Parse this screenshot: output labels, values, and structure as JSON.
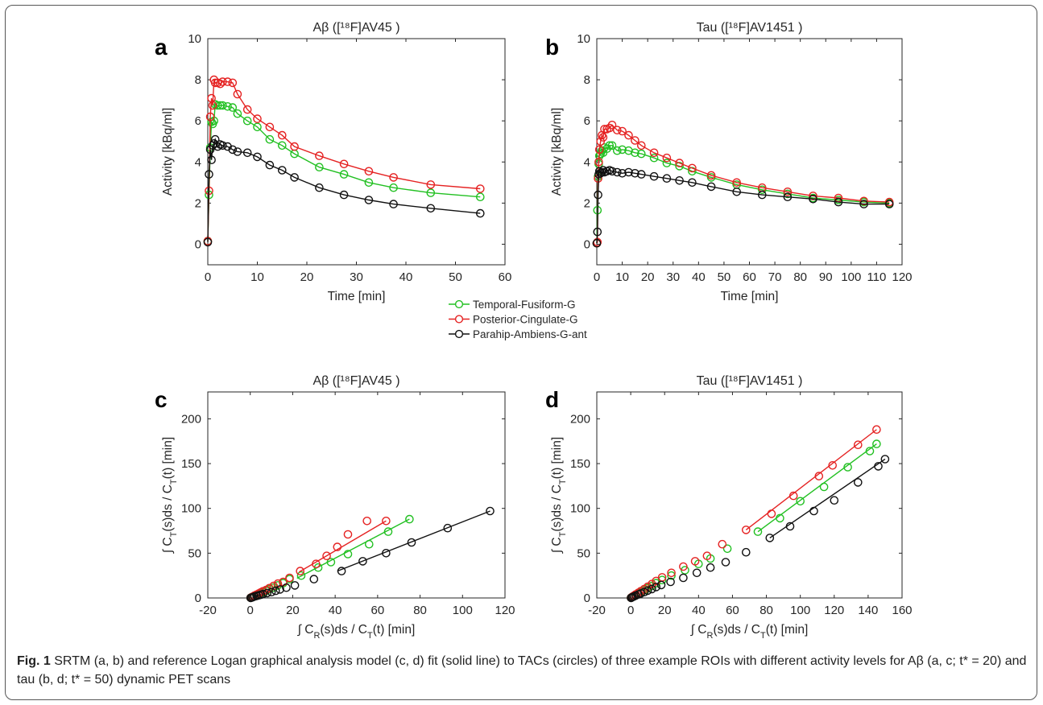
{
  "chart_data": [
    {
      "panel": "a",
      "type": "line",
      "title": "Aβ ([¹⁸F]AV45 )",
      "xlabel": "Time [min]",
      "ylabel": "Activity [kBq/ml]",
      "xlim": [
        0,
        60
      ],
      "ylim": [
        -1,
        10
      ],
      "xticks": [
        0,
        10,
        20,
        30,
        40,
        50,
        60
      ],
      "yticks": [
        0,
        2,
        4,
        6,
        8,
        10
      ],
      "series": [
        {
          "color": "#22c022",
          "x": [
            0,
            0.25,
            0.5,
            0.75,
            1,
            1.25,
            1.5,
            2,
            2.5,
            3,
            4,
            5,
            6,
            8,
            10,
            12.5,
            15,
            17.5,
            22.5,
            27.5,
            32.5,
            37.5,
            45,
            55
          ],
          "y": [
            0.15,
            2.4,
            4.7,
            5.95,
            5.85,
            6.0,
            6.8,
            6.75,
            6.75,
            6.75,
            6.7,
            6.65,
            6.35,
            6.0,
            5.7,
            5.1,
            4.8,
            4.4,
            3.75,
            3.4,
            3.0,
            2.75,
            2.5,
            2.3
          ]
        },
        {
          "color": "#e52222",
          "x": [
            0,
            0.25,
            0.5,
            0.75,
            1,
            1.25,
            1.5,
            2,
            2.5,
            3,
            4,
            5,
            6,
            8,
            10,
            12.5,
            15,
            17.5,
            22.5,
            27.5,
            32.5,
            37.5,
            45,
            55
          ],
          "y": [
            0.15,
            2.6,
            6.2,
            7.1,
            6.75,
            8.0,
            7.85,
            7.85,
            7.8,
            7.9,
            7.9,
            7.85,
            7.3,
            6.55,
            6.1,
            5.7,
            5.3,
            4.75,
            4.3,
            3.9,
            3.55,
            3.25,
            2.9,
            2.7
          ]
        },
        {
          "color": "#111111",
          "x": [
            0,
            0.25,
            0.5,
            0.75,
            1,
            1.25,
            1.5,
            2,
            2.5,
            3,
            4,
            5,
            6,
            8,
            10,
            12.5,
            15,
            17.5,
            22.5,
            27.5,
            32.5,
            37.5,
            45,
            55
          ],
          "y": [
            0.1,
            3.4,
            4.6,
            4.1,
            4.8,
            4.9,
            5.1,
            4.75,
            4.85,
            4.8,
            4.75,
            4.6,
            4.5,
            4.45,
            4.25,
            3.85,
            3.6,
            3.25,
            2.75,
            2.4,
            2.15,
            1.95,
            1.75,
            1.5
          ]
        }
      ]
    },
    {
      "panel": "b",
      "type": "line",
      "title": "Tau ([¹⁸F]AV1451 )",
      "xlabel": "Time [min]",
      "ylabel": "Activity [kBq/ml]",
      "xlim": [
        0,
        120
      ],
      "ylim": [
        -1,
        10
      ],
      "xticks": [
        0,
        10,
        20,
        30,
        40,
        50,
        60,
        70,
        80,
        90,
        100,
        110,
        120
      ],
      "yticks": [
        0,
        2,
        4,
        6,
        8,
        10
      ],
      "series": [
        {
          "color": "#22c022",
          "x": [
            0,
            0.25,
            0.5,
            0.75,
            1,
            1.5,
            2,
            2.5,
            3,
            4,
            5,
            6,
            8,
            10,
            12.5,
            15,
            17.5,
            22.5,
            27.5,
            32.5,
            37.5,
            45,
            55,
            65,
            75,
            85,
            95,
            105,
            115
          ],
          "y": [
            0.05,
            1.65,
            3.3,
            3.9,
            4.3,
            4.4,
            4.55,
            4.45,
            4.7,
            4.65,
            4.8,
            4.8,
            4.55,
            4.6,
            4.55,
            4.45,
            4.4,
            4.2,
            3.95,
            3.8,
            3.55,
            3.25,
            2.9,
            2.65,
            2.45,
            2.25,
            2.15,
            2.05,
            2.0
          ]
        },
        {
          "color": "#e52222",
          "x": [
            0,
            0.25,
            0.5,
            0.75,
            1,
            1.5,
            2,
            2.5,
            3,
            4,
            5,
            6,
            8,
            10,
            12.5,
            15,
            17.5,
            22.5,
            27.5,
            32.5,
            37.5,
            45,
            55,
            65,
            75,
            85,
            95,
            105,
            115
          ],
          "y": [
            0.05,
            0.1,
            3.2,
            4.0,
            4.6,
            5.0,
            5.3,
            5.2,
            5.6,
            5.6,
            5.65,
            5.8,
            5.55,
            5.5,
            5.3,
            5.05,
            4.8,
            4.45,
            4.2,
            3.95,
            3.7,
            3.35,
            3.0,
            2.75,
            2.55,
            2.35,
            2.25,
            2.1,
            2.05
          ]
        },
        {
          "color": "#111111",
          "x": [
            0,
            0.25,
            0.5,
            0.75,
            1,
            1.5,
            2,
            2.5,
            3,
            4,
            5,
            6,
            8,
            10,
            12.5,
            15,
            17.5,
            22.5,
            27.5,
            32.5,
            37.5,
            45,
            55,
            65,
            75,
            85,
            95,
            105,
            115
          ],
          "y": [
            0.05,
            0.6,
            2.4,
            3.4,
            3.55,
            3.45,
            3.5,
            3.6,
            3.5,
            3.55,
            3.6,
            3.55,
            3.5,
            3.45,
            3.5,
            3.45,
            3.4,
            3.3,
            3.2,
            3.1,
            3.0,
            2.8,
            2.55,
            2.4,
            2.3,
            2.2,
            2.05,
            1.95,
            1.95
          ]
        }
      ]
    },
    {
      "panel": "c",
      "type": "scatter",
      "title": "Aβ ([¹⁸F]AV45 )",
      "xlabel": "∫ C_R(s)ds / C_T(t) [min]",
      "ylabel": "∫ C_T(s)ds / C_T(t) [min]",
      "xlim": [
        -20,
        120
      ],
      "ylim": [
        0,
        230
      ],
      "xticks": [
        -20,
        0,
        20,
        40,
        60,
        80,
        100,
        120
      ],
      "yticks": [
        0,
        50,
        100,
        150,
        200
      ],
      "series": [
        {
          "color": "#22c022",
          "x": [
            0.2,
            0.6,
            1.2,
            2,
            3,
            4,
            5,
            6,
            7.5,
            9,
            11,
            13,
            15.5,
            18.5,
            24,
            32,
            38,
            46,
            56,
            65,
            75
          ],
          "y": [
            0.2,
            0.6,
            1.3,
            2.3,
            3.3,
            4.3,
            5.4,
            6.4,
            8,
            9.8,
            11.5,
            14,
            16.5,
            21,
            25,
            34,
            40,
            49,
            60,
            74,
            88
          ],
          "fit_x": [
            22,
            75
          ],
          "fit_y": [
            22,
            88
          ]
        },
        {
          "color": "#e52222",
          "x": [
            0.2,
            0.6,
            1.2,
            2,
            3,
            4,
            5,
            6,
            7.5,
            9,
            11,
            13,
            15.5,
            18.5,
            23.5,
            31,
            36,
            41,
            46,
            55,
            64
          ],
          "y": [
            0.2,
            0.7,
            1.5,
            2.6,
            3.8,
            5,
            6.3,
            7.5,
            9,
            11,
            13.5,
            16,
            18,
            22.5,
            30,
            38,
            47,
            57,
            71,
            86,
            86
          ],
          "fit_x": [
            23,
            64
          ],
          "fit_y": [
            29,
            86
          ]
        },
        {
          "color": "#111111",
          "x": [
            0.2,
            0.6,
            1.2,
            2,
            3,
            4,
            5,
            6,
            8,
            10,
            12,
            14,
            17,
            21,
            30,
            43,
            53,
            64,
            76,
            93,
            113
          ],
          "y": [
            0.1,
            0.4,
            0.9,
            1.6,
            2.3,
            3,
            3.6,
            4.3,
            5.5,
            6.6,
            8,
            9.5,
            11.5,
            14,
            21,
            30,
            41,
            50,
            62,
            78,
            97
          ],
          "fit_x": [
            41,
            113
          ],
          "fit_y": [
            30,
            97
          ]
        }
      ]
    },
    {
      "panel": "d",
      "type": "scatter",
      "title": "Tau ([¹⁸F]AV1451 )",
      "xlabel": "∫ C_R(s)ds / C_T(t) [min]",
      "ylabel": "∫ C_T(s)ds / C_T(t) [min]",
      "xlim": [
        -20,
        160
      ],
      "ylim": [
        0,
        230
      ],
      "xticks": [
        -20,
        0,
        20,
        40,
        60,
        80,
        100,
        120,
        140,
        160
      ],
      "yticks": [
        0,
        50,
        100,
        150,
        200
      ],
      "series": [
        {
          "color": "#22c022",
          "x": [
            0.2,
            0.6,
            1.2,
            2,
            3,
            4.5,
            6,
            8,
            10,
            12.5,
            15,
            18.5,
            24,
            32,
            40,
            47,
            57,
            75,
            88,
            100,
            114,
            128,
            141,
            145
          ],
          "y": [
            0.2,
            0.7,
            1.4,
            2.3,
            3.5,
            5,
            6.6,
            8.7,
            11,
            13.5,
            16.5,
            20,
            25,
            31,
            38,
            44,
            55,
            74,
            89,
            108,
            124,
            146,
            164,
            172
          ],
          "fit_x": [
            75,
            145
          ],
          "fit_y": [
            74,
            172
          ]
        },
        {
          "color": "#e52222",
          "x": [
            0.2,
            0.6,
            1.2,
            2,
            3,
            4.5,
            6,
            8,
            10,
            12.5,
            15,
            18.5,
            24,
            31,
            38,
            45,
            54,
            68,
            83,
            96,
            111,
            119,
            134,
            145
          ],
          "y": [
            0.2,
            0.8,
            1.6,
            2.6,
            4,
            5.8,
            7.6,
            10,
            12.5,
            15.5,
            19,
            23,
            28,
            35,
            41,
            47,
            60,
            76,
            94,
            114,
            136,
            148,
            171,
            188
          ],
          "fit_x": [
            68,
            145
          ],
          "fit_y": [
            76,
            188
          ]
        },
        {
          "color": "#111111",
          "x": [
            0.2,
            0.6,
            1.2,
            2,
            3,
            4.5,
            6,
            8,
            10,
            12.5,
            15,
            18,
            23.5,
            31,
            39,
            47,
            56,
            68,
            82,
            94,
            108,
            120,
            134,
            146,
            150
          ],
          "y": [
            0.1,
            0.5,
            1.1,
            1.8,
            2.7,
            3.9,
            5,
            6.6,
            8.2,
            10,
            12.2,
            14.5,
            18,
            22.5,
            28,
            34,
            40,
            51,
            67,
            80,
            97,
            109,
            129,
            147,
            155
          ],
          "fit_x": [
            82,
            150
          ],
          "fit_y": [
            67,
            155
          ]
        }
      ]
    }
  ],
  "legend": {
    "items": [
      {
        "label": "Temporal-Fusiform-G",
        "color": "#22c022"
      },
      {
        "label": "Posterior-Cingulate-G",
        "color": "#e52222"
      },
      {
        "label": "Parahip-Ambiens-G-ant",
        "color": "#111111"
      }
    ]
  },
  "caption": {
    "label": "Fig. 1",
    "text": " SRTM (a, b) and reference Logan graphical analysis model (c, d) fit (solid line) to TACs (circles) of three example ROIs with different activity levels for Aβ (a, c; t* = 20) and tau (b, d; t* = 50) dynamic PET scans"
  }
}
